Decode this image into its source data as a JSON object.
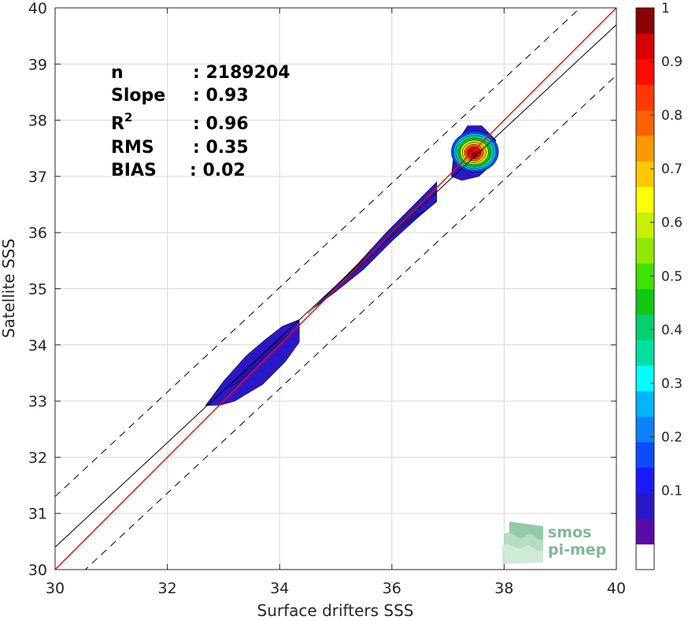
{
  "chart_data": {
    "type": "density-scatter",
    "xlabel": "Surface drifters SSS",
    "ylabel": "Satellite SSS",
    "xlim": [
      30,
      40
    ],
    "ylim": [
      30,
      40
    ],
    "xticks": [
      "30",
      "32",
      "34",
      "36",
      "38",
      "40"
    ],
    "yticks": [
      "30",
      "31",
      "32",
      "33",
      "34",
      "35",
      "36",
      "37",
      "38",
      "39",
      "40"
    ],
    "grid": true,
    "stats": [
      {
        "label": "n",
        "value": ": 2189204"
      },
      {
        "label": "Slope",
        "value": ": 0.93"
      },
      {
        "label": "R",
        "sup": "2",
        "value": ": 0.96"
      },
      {
        "label": "RMS",
        "value": ": 0.35"
      },
      {
        "label": "BIAS",
        "value": ": 0.02"
      }
    ],
    "lines": {
      "identity": {
        "slope": 1,
        "intercept": 0,
        "color": "#ff0000"
      },
      "fit": {
        "slope": 0.93,
        "intercept": 2.5,
        "color": "#000000"
      },
      "upper_bound": {
        "slope": 0.93,
        "intercept": 3.4,
        "color": "#000000",
        "style": "dashed"
      },
      "lower_bound": {
        "slope": 0.93,
        "intercept": 1.6,
        "color": "#000000",
        "style": "dashed"
      }
    },
    "density_regions": [
      {
        "level": 0.05,
        "points": [
          [
            32.68,
            32.92
          ],
          [
            33.0,
            33.35
          ],
          [
            33.4,
            33.8
          ],
          [
            33.75,
            34.1
          ],
          [
            34.05,
            34.33
          ],
          [
            34.35,
            34.45
          ],
          [
            34.35,
            34.05
          ],
          [
            34.1,
            33.7
          ],
          [
            33.7,
            33.3
          ],
          [
            33.2,
            33.0
          ],
          [
            32.95,
            32.93
          ]
        ]
      },
      {
        "level": 0.05,
        "points": [
          [
            34.5,
            34.55
          ],
          [
            34.9,
            34.95
          ],
          [
            35.4,
            35.45
          ],
          [
            35.9,
            36.0
          ],
          [
            36.4,
            36.5
          ],
          [
            36.8,
            36.9
          ],
          [
            36.8,
            36.55
          ],
          [
            36.5,
            36.3
          ],
          [
            36.0,
            35.85
          ],
          [
            35.5,
            35.35
          ],
          [
            35.0,
            34.95
          ],
          [
            34.6,
            34.65
          ]
        ]
      },
      {
        "level": 0.05,
        "points": [
          [
            37.06,
            37.0
          ],
          [
            37.12,
            37.55
          ],
          [
            37.35,
            37.9
          ],
          [
            37.6,
            37.9
          ],
          [
            37.85,
            37.65
          ],
          [
            37.82,
            37.25
          ],
          [
            37.55,
            37.0
          ],
          [
            37.25,
            36.93
          ]
        ]
      }
    ],
    "peak": {
      "x": 37.48,
      "y": 37.44,
      "levels": [
        0.1,
        0.2,
        0.3,
        0.4,
        0.5,
        0.6,
        0.7,
        0.8,
        0.9,
        1.0
      ]
    },
    "colorbar": {
      "ticks": [
        "0.1",
        "0.2",
        "0.3",
        "0.4",
        "0.5",
        "0.6",
        "0.7",
        "0.8",
        "0.9",
        "1"
      ],
      "colors": [
        "#ffffff",
        "#5a0aa8",
        "#2a18c8",
        "#1a1aff",
        "#0a4cff",
        "#0a82ff",
        "#00b4ff",
        "#00ffff",
        "#00e0a0",
        "#00d070",
        "#10c810",
        "#40e000",
        "#90e800",
        "#c8f000",
        "#ffff00",
        "#ffc800",
        "#ff9800",
        "#ff6000",
        "#ff3800",
        "#ff0a00",
        "#d80000",
        "#8b0000"
      ]
    }
  },
  "logo": {
    "line1": "smos",
    "line2": "pi-mep"
  }
}
